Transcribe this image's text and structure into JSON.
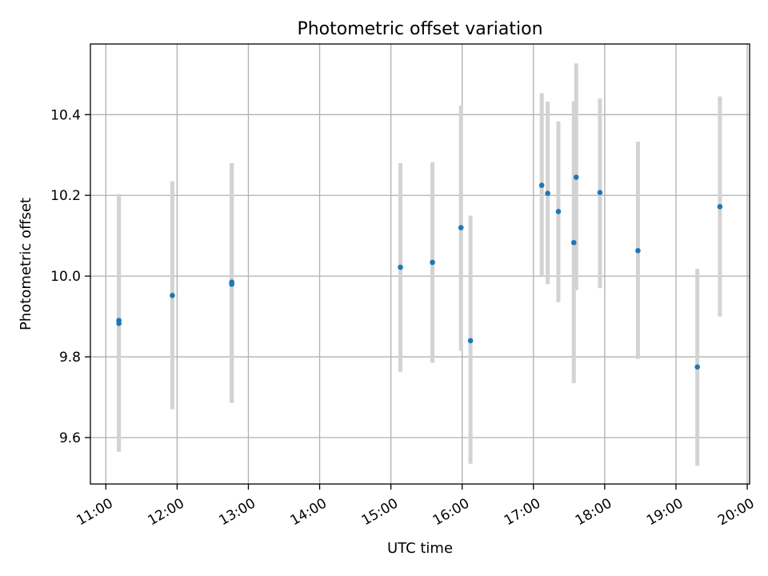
{
  "chart_data": {
    "type": "scatter",
    "title": "Photometric offset variation",
    "xlabel": "UTC time",
    "ylabel": "Photometric offset",
    "x_ticks": [
      "11:00",
      "12:00",
      "13:00",
      "14:00",
      "15:00",
      "16:00",
      "17:00",
      "18:00",
      "19:00",
      "20:00"
    ],
    "y_ticks": [
      9.6,
      9.8,
      10.0,
      10.2,
      10.4
    ],
    "xlim": [
      "10:47",
      "20:02"
    ],
    "ylim": [
      9.485,
      10.575
    ],
    "grid": true,
    "marker_color": "#1f77b4",
    "errorbar_color": "#d3d3d3",
    "series": [
      {
        "points": [
          {
            "x": "11:11",
            "y": 9.883,
            "ylow": 9.565,
            "yhigh": 10.203
          },
          {
            "x": "11:11",
            "y": 9.89,
            "ylow": 9.565,
            "yhigh": 10.203
          },
          {
            "x": "11:56",
            "y": 9.952,
            "ylow": 9.67,
            "yhigh": 10.235
          },
          {
            "x": "12:46",
            "y": 9.98,
            "ylow": 9.686,
            "yhigh": 10.28
          },
          {
            "x": "12:46",
            "y": 9.985,
            "ylow": 9.686,
            "yhigh": 10.28
          },
          {
            "x": "15:08",
            "y": 10.022,
            "ylow": 9.763,
            "yhigh": 10.28
          },
          {
            "x": "15:35",
            "y": 10.034,
            "ylow": 9.785,
            "yhigh": 10.282
          },
          {
            "x": "15:59",
            "y": 10.12,
            "ylow": 9.815,
            "yhigh": 10.423
          },
          {
            "x": "16:07",
            "y": 9.84,
            "ylow": 9.535,
            "yhigh": 10.15
          },
          {
            "x": "17:07",
            "y": 10.225,
            "ylow": 10.0,
            "yhigh": 10.453
          },
          {
            "x": "17:12",
            "y": 10.205,
            "ylow": 9.98,
            "yhigh": 10.432
          },
          {
            "x": "17:21",
            "y": 10.16,
            "ylow": 9.935,
            "yhigh": 10.383
          },
          {
            "x": "17:34",
            "y": 10.083,
            "ylow": 9.735,
            "yhigh": 10.433
          },
          {
            "x": "17:36",
            "y": 10.245,
            "ylow": 9.965,
            "yhigh": 10.527
          },
          {
            "x": "17:56",
            "y": 10.207,
            "ylow": 9.97,
            "yhigh": 10.44
          },
          {
            "x": "18:28",
            "y": 10.063,
            "ylow": 9.795,
            "yhigh": 10.333
          },
          {
            "x": "19:18",
            "y": 9.775,
            "ylow": 9.53,
            "yhigh": 10.018
          },
          {
            "x": "19:37",
            "y": 10.172,
            "ylow": 9.9,
            "yhigh": 10.445
          }
        ]
      }
    ]
  }
}
